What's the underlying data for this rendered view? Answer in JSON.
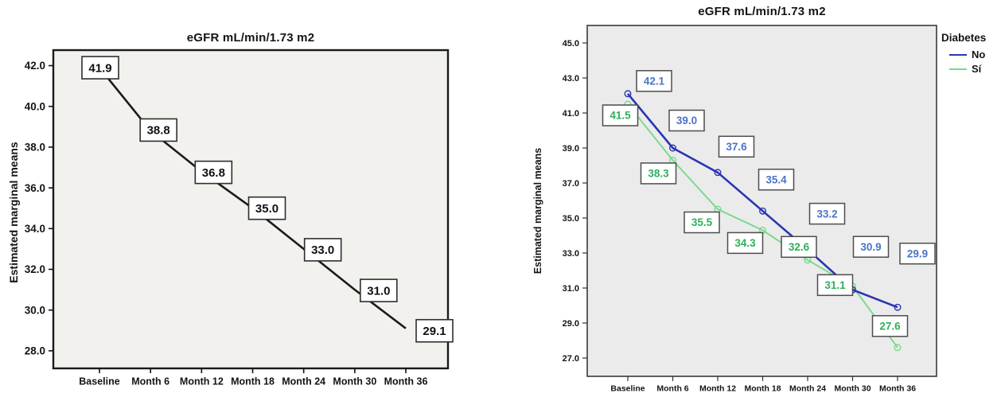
{
  "figure": {
    "background": "#ffffff"
  },
  "chart_data": [
    {
      "type": "line",
      "title": "eGFR mL/min/1.73 m2",
      "ylabel": "Estimated marginal means",
      "xlabel": "",
      "categories": [
        "Baseline",
        "Month 6",
        "Month 12",
        "Month 18",
        "Month 24",
        "Month 30",
        "Month 36"
      ],
      "series": [
        {
          "name": "eGFR overall",
          "color": "#1a1a1a",
          "label_color": "#111111",
          "values": [
            41.9,
            38.8,
            36.8,
            35.0,
            33.0,
            31.0,
            29.1
          ]
        }
      ],
      "yticks": [
        42.0,
        40.0,
        38.0,
        36.0,
        34.0,
        32.0,
        30.0,
        28.0
      ],
      "ylim": [
        27.1,
        42.8
      ],
      "grid": false,
      "data_labels": true,
      "legend_position": "none",
      "plot_bg": "#f2f1ee"
    },
    {
      "type": "line",
      "title": "eGFR mL/min/1.73 m2",
      "ylabel": "Estimated marginal means",
      "xlabel": "",
      "legend_title": "Diabetes",
      "legend_position": "top-right-outside",
      "categories": [
        "Baseline",
        "Month 6",
        "Month 12",
        "Month 18",
        "Month 24",
        "Month 30",
        "Month 36"
      ],
      "series": [
        {
          "name": "No",
          "color": "#2c35b2",
          "label_color": "#4a74c8",
          "values": [
            42.1,
            39.0,
            37.6,
            35.4,
            33.2,
            30.9,
            29.9
          ]
        },
        {
          "name": "Sí",
          "color": "#79d98b",
          "label_color": "#2eb05a",
          "values": [
            41.5,
            38.3,
            35.5,
            34.3,
            32.6,
            31.1,
            27.6
          ]
        }
      ],
      "yticks": [
        45.0,
        43.0,
        41.0,
        39.0,
        37.0,
        35.0,
        33.0,
        31.0,
        29.0,
        27.0
      ],
      "ylim": [
        26.0,
        46.0
      ],
      "grid": false,
      "data_labels": true,
      "plot_bg": "#ebebeb"
    }
  ]
}
